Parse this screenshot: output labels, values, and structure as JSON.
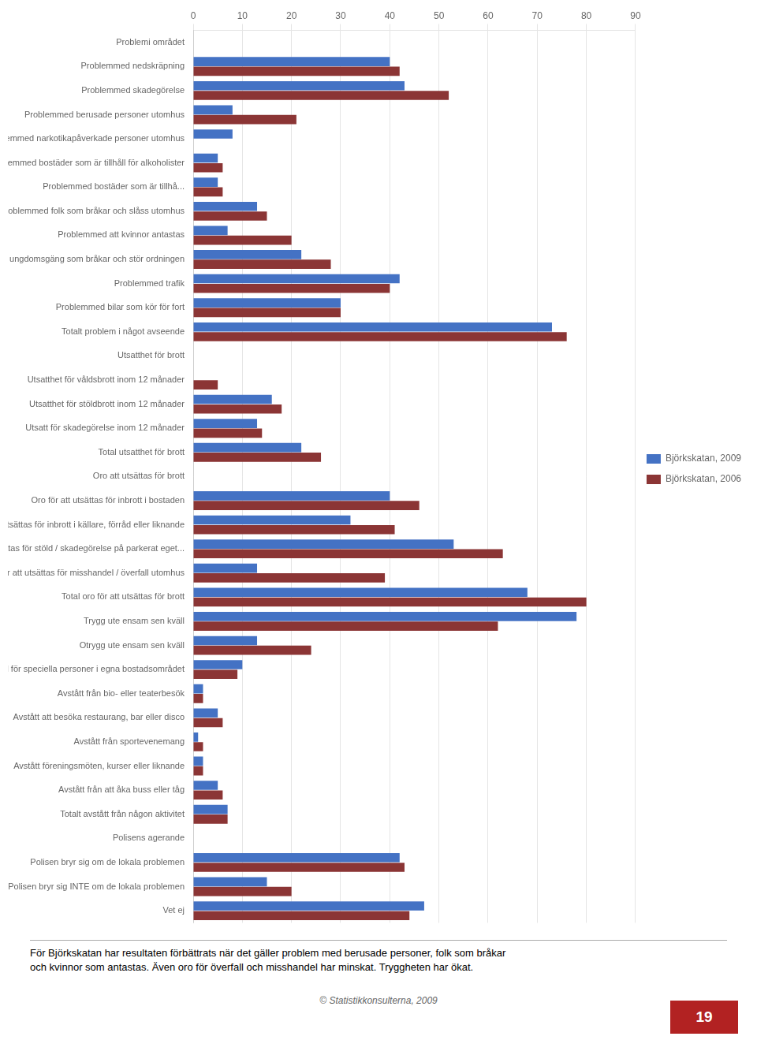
{
  "chart_data": {
    "type": "bar",
    "orientation": "horizontal",
    "categories": [
      "Problemi området",
      "Problemmed nedskräpning",
      "Problemmed skadegörelse",
      "Problemmed berusade personer utomhus",
      "Problemmed narkotikapåverkade personer utomhus",
      "Problemmed bostäder som är tillhåll för alkoholister",
      "Problemmed bostäder som är tillhå...",
      "Problemmed folk som bråkar och slåss utomhus",
      "Problemmed att kvinnor antastas",
      "Problemmed ungdomsgäng som bråkar och stör ordningen",
      "Problemmed trafik",
      "Problemmed bilar som kör för fort",
      "Totalt problem i något avseende",
      "Utsatthet för brott",
      "Utsatthet för våldsbrott inom 12 månader",
      "Utsatthet för stöldbrott inom 12 månader",
      "Utsatt för skadegörelse inom 12 månader",
      "Total utsatthet för brott",
      "Oro att utsättas för brott",
      "Oro för att utsättas för inbrott i bostaden",
      "Oro för att utsättas för inbrott i källare, förråd eller liknande",
      "Oro för att utsättas för stöld / skadegörelse på parkerat eget...",
      "Oro för att utsättas för misshandel / överfall utomhus",
      "Total oro för att utsättas för brott",
      "Trygg ute ensam sen kväll",
      "Otrygg ute ensam sen kväll",
      "Rädd för speciella personer i egna bostadsområdet",
      "Avstått från bio- eller teaterbesök",
      "Avstått att besöka restaurang, bar eller disco",
      "Avstått från sportevenemang",
      "Avstått föreningsmöten, kurser eller liknande",
      "Avstått från att åka buss eller tåg",
      "Totalt avstått från någon aktivitet",
      "Polisens agerande",
      "Polisen bryr sig om de lokala problemen",
      "Polisen bryr sig INTE om de lokala problemen",
      "Vet ej"
    ],
    "series": [
      {
        "name": "Björkskatan, 2009",
        "color": "#4472C4",
        "values": [
          0,
          40,
          43,
          8,
          8,
          5,
          5,
          13,
          7,
          22,
          42,
          30,
          73,
          0,
          0,
          16,
          13,
          22,
          0,
          40,
          32,
          53,
          13,
          68,
          78,
          13,
          10,
          2,
          5,
          1,
          2,
          5,
          7,
          0,
          42,
          15,
          47
        ]
      },
      {
        "name": "Björkskatan, 2006",
        "color": "#8B3535",
        "values": [
          0,
          42,
          52,
          21,
          0,
          6,
          6,
          15,
          20,
          28,
          40,
          30,
          76,
          0,
          5,
          18,
          14,
          26,
          0,
          46,
          41,
          63,
          39,
          80,
          62,
          24,
          9,
          2,
          6,
          2,
          2,
          6,
          7,
          0,
          43,
          20,
          44
        ]
      }
    ],
    "xlim": [
      0,
      90
    ],
    "xticks": [
      0,
      10,
      20,
      30,
      40,
      50,
      60,
      70,
      80,
      90
    ],
    "grid": true,
    "legend": "right",
    "annotations": [
      "För Björkskatan har resultaten förbättrats när det gäller problem med berusade personer, folk som bråkar",
      "och kvinnor som antastas. Även oro för överfall och misshandel har minskat. Tryggheten har ökat.",
      "© Statistikkonsulterna, 2009",
      "19"
    ]
  }
}
